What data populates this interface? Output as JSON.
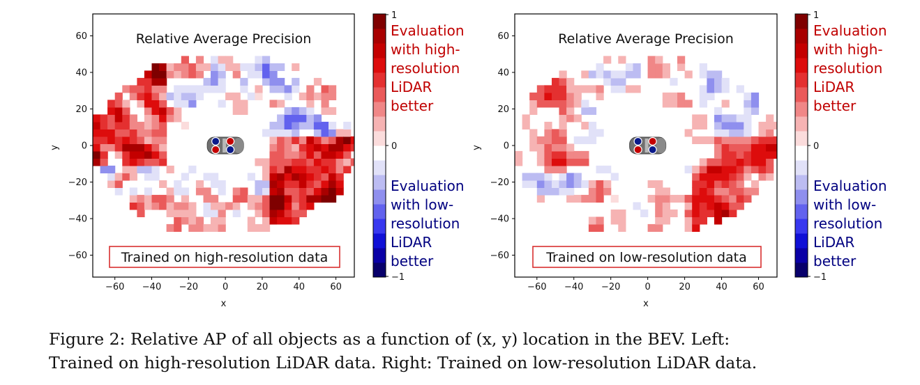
{
  "caption": {
    "line1": "Figure 2:  Relative AP of all objects as a function of (x, y) location in the BEV. Left:",
    "line2": "Trained on high-resolution LiDAR data. Right: Trained on low-resolution LiDAR data."
  },
  "colorbar": {
    "tick_top": "1",
    "tick_mid": "0",
    "tick_bottom": "−1",
    "colors": [
      "#08006b",
      "#0a00a6",
      "#1010d6",
      "#3838ef",
      "#6262ee",
      "#8f8fee",
      "#bcbcf2",
      "#e1e1f8",
      "#ffffff",
      "#fbdcdc",
      "#f6b3b3",
      "#f08787",
      "#ea5a5a",
      "#e43030",
      "#dd0c0c",
      "#c40000",
      "#a80000",
      "#7f0000"
    ],
    "high_note": [
      "Evaluation",
      "with high-",
      "resolution",
      "LiDAR",
      "better"
    ],
    "low_note": [
      "Evaluation",
      "with low-",
      "resolution",
      "LiDAR",
      "better"
    ],
    "high_color": "#c00000",
    "low_color": "#000080"
  },
  "chart_data": [
    {
      "type": "heatmap",
      "title": "Relative Average Precision",
      "xlabel": "x",
      "ylabel": "y",
      "xlim": [
        -72,
        70
      ],
      "ylim": [
        -72,
        72
      ],
      "xticks": [
        -60,
        -40,
        -20,
        0,
        20,
        40,
        60
      ],
      "yticks": [
        60,
        40,
        20,
        0,
        -20,
        -40,
        -60
      ],
      "zlim": [
        -1,
        1
      ],
      "annotation": "Trained on high-resolution data",
      "seed": 7,
      "strength": 1.0,
      "description_of_values": "Relative AP: positive (red) where high-resolution evaluation is better; mostly positive in the rear-left and front-right regions"
    },
    {
      "type": "heatmap",
      "title": "Relative Average Precision",
      "xlabel": "x",
      "ylabel": "y",
      "xlim": [
        -72,
        70
      ],
      "ylim": [
        -72,
        72
      ],
      "xticks": [
        -60,
        -40,
        -20,
        0,
        20,
        40,
        60
      ],
      "yticks": [
        60,
        40,
        20,
        0,
        -20,
        -40,
        -60
      ],
      "zlim": [
        -1,
        1
      ],
      "annotation": "Trained on low-resolution data",
      "seed": 23,
      "strength": 0.72,
      "description_of_values": "Relative AP: weaker positive values overall, more blue regions near the sides"
    }
  ]
}
